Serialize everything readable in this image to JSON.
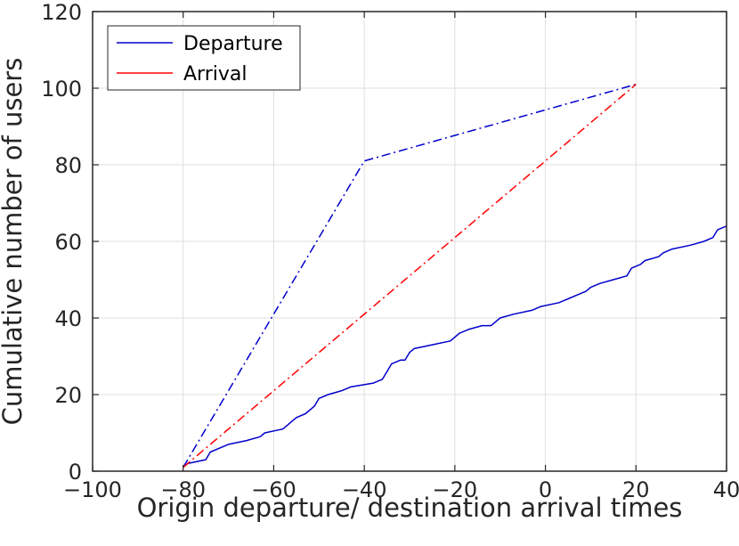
{
  "chart_data": {
    "type": "line",
    "title": "",
    "xlabel": "Origin departure/ destination arrival times",
    "ylabel": "Cumulative number of users",
    "xlim": [
      -100,
      40
    ],
    "ylim": [
      0,
      120
    ],
    "xticks": [
      -100,
      -80,
      -60,
      -40,
      -20,
      0,
      20,
      40
    ],
    "yticks": [
      0,
      20,
      40,
      60,
      80,
      100,
      120
    ],
    "grid": true,
    "legend_position": "top-left",
    "colors": {
      "departure": "#0000cc",
      "arrival": "#ff0000",
      "grid": "#dfdfdf",
      "axis": "#262626"
    },
    "legend": [
      {
        "label": "Departure",
        "color": "#0000cc"
      },
      {
        "label": "Arrival",
        "color": "#ff0000"
      }
    ],
    "series": [
      {
        "name": "Departure",
        "style": "solid",
        "color": "#0000cc",
        "points": [
          [
            -80,
            1
          ],
          [
            -79,
            2
          ],
          [
            -75,
            3
          ],
          [
            -74,
            5
          ],
          [
            -70,
            7
          ],
          [
            -66,
            8
          ],
          [
            -63,
            9
          ],
          [
            -62,
            10
          ],
          [
            -58,
            11
          ],
          [
            -57,
            12
          ],
          [
            -56,
            13
          ],
          [
            -55,
            14
          ],
          [
            -53,
            15
          ],
          [
            -51,
            17
          ],
          [
            -50,
            19
          ],
          [
            -48,
            20
          ],
          [
            -45,
            21
          ],
          [
            -43,
            22
          ],
          [
            -38,
            23
          ],
          [
            -36,
            24
          ],
          [
            -35,
            26
          ],
          [
            -34,
            28
          ],
          [
            -32,
            29
          ],
          [
            -31,
            29
          ],
          [
            -30,
            31
          ],
          [
            -29,
            32
          ],
          [
            -25,
            33
          ],
          [
            -21,
            34
          ],
          [
            -20,
            35
          ],
          [
            -19,
            36
          ],
          [
            -17,
            37
          ],
          [
            -14,
            38
          ],
          [
            -12,
            38
          ],
          [
            -11,
            39
          ],
          [
            -10,
            40
          ],
          [
            -7,
            41
          ],
          [
            -3,
            42
          ],
          [
            -1,
            43
          ],
          [
            3,
            44
          ],
          [
            5,
            45
          ],
          [
            7,
            46
          ],
          [
            9,
            47
          ],
          [
            10,
            48
          ],
          [
            12,
            49
          ],
          [
            15,
            50
          ],
          [
            18,
            51
          ],
          [
            19,
            53
          ],
          [
            21,
            54
          ],
          [
            22,
            55
          ],
          [
            25,
            56
          ],
          [
            26,
            57
          ],
          [
            28,
            58
          ],
          [
            32,
            59
          ],
          [
            35,
            60
          ],
          [
            37,
            61
          ],
          [
            38,
            63
          ],
          [
            40,
            64
          ]
        ]
      },
      {
        "name": "Departure",
        "style": "dashdot",
        "color": "#0000cc",
        "points": [
          [
            -80,
            1
          ],
          [
            -40,
            81
          ],
          [
            20,
            101
          ]
        ]
      },
      {
        "name": "Arrival",
        "style": "dashdot",
        "color": "#ff0000",
        "points": [
          [
            -80,
            1
          ],
          [
            20,
            101
          ]
        ]
      }
    ]
  }
}
